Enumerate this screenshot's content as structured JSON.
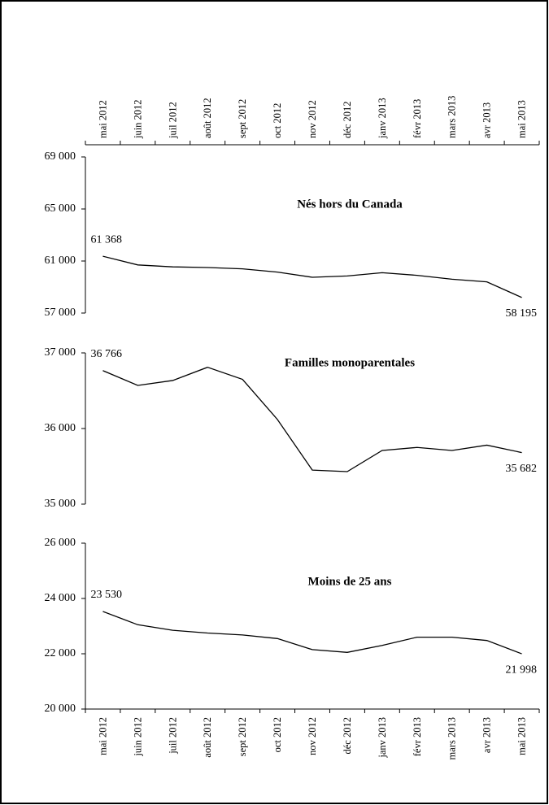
{
  "chart_data": [
    {
      "type": "line",
      "title": "Nés hors du Canada",
      "categories": [
        "mai 2012",
        "juin 2012",
        "juil 2012",
        "août 2012",
        "sept 2012",
        "oct 2012",
        "nov 2012",
        "déc 2012",
        "janv 2013",
        "févr 2013",
        "mars 2013",
        "avr 2013",
        "mai 2013"
      ],
      "values": [
        61368,
        60700,
        60550,
        60500,
        60400,
        60150,
        59750,
        59850,
        60100,
        59900,
        59600,
        59400,
        58195
      ],
      "value_labels": [
        "61 368",
        null,
        null,
        null,
        null,
        null,
        null,
        null,
        null,
        null,
        null,
        null,
        "58 195"
      ],
      "color": "#000000",
      "category_axis": "top",
      "ylim": [
        57000,
        69000
      ],
      "yticks": [
        {
          "value": 57000,
          "label": "57 000"
        },
        {
          "value": 61000,
          "label": "61 000"
        },
        {
          "value": 65000,
          "label": "65 000"
        },
        {
          "value": 69000,
          "label": "69 000"
        }
      ]
    },
    {
      "type": "line",
      "title": "Familles monoparentales",
      "values": [
        36766,
        36570,
        36635,
        36810,
        36650,
        36120,
        35450,
        35430,
        35710,
        35750,
        35710,
        35780,
        35682
      ],
      "value_labels": [
        "36 766",
        null,
        null,
        null,
        null,
        null,
        null,
        null,
        null,
        null,
        null,
        null,
        "35 682"
      ],
      "color": "#000000",
      "ylim": [
        35000,
        37000
      ],
      "yticks": [
        {
          "value": 35000,
          "label": "35 000"
        },
        {
          "value": 36000,
          "label": "36 000"
        },
        {
          "value": 37000,
          "label": "37 000"
        }
      ]
    },
    {
      "type": "line",
      "title": "Moins de 25 ans",
      "categories": [
        "mai 2012",
        "juin 2012",
        "juil 2012",
        "août 2012",
        "sept 2012",
        "oct 2012",
        "nov 2012",
        "déc 2012",
        "janv 2013",
        "févr 2013",
        "mars 2013",
        "avr 2013",
        "mai 2013"
      ],
      "values": [
        23530,
        23050,
        22850,
        22750,
        22680,
        22550,
        22150,
        22050,
        22300,
        22600,
        22600,
        22480,
        21998
      ],
      "value_labels": [
        "23 530",
        null,
        null,
        null,
        null,
        null,
        null,
        null,
        null,
        null,
        null,
        null,
        "21 998"
      ],
      "color": "#000000",
      "category_axis": "bottom",
      "ylim": [
        20000,
        26000
      ],
      "yticks": [
        {
          "value": 20000,
          "label": "20 000"
        },
        {
          "value": 22000,
          "label": "22 000"
        },
        {
          "value": 24000,
          "label": "24 000"
        },
        {
          "value": 26000,
          "label": "26 000"
        }
      ]
    }
  ]
}
